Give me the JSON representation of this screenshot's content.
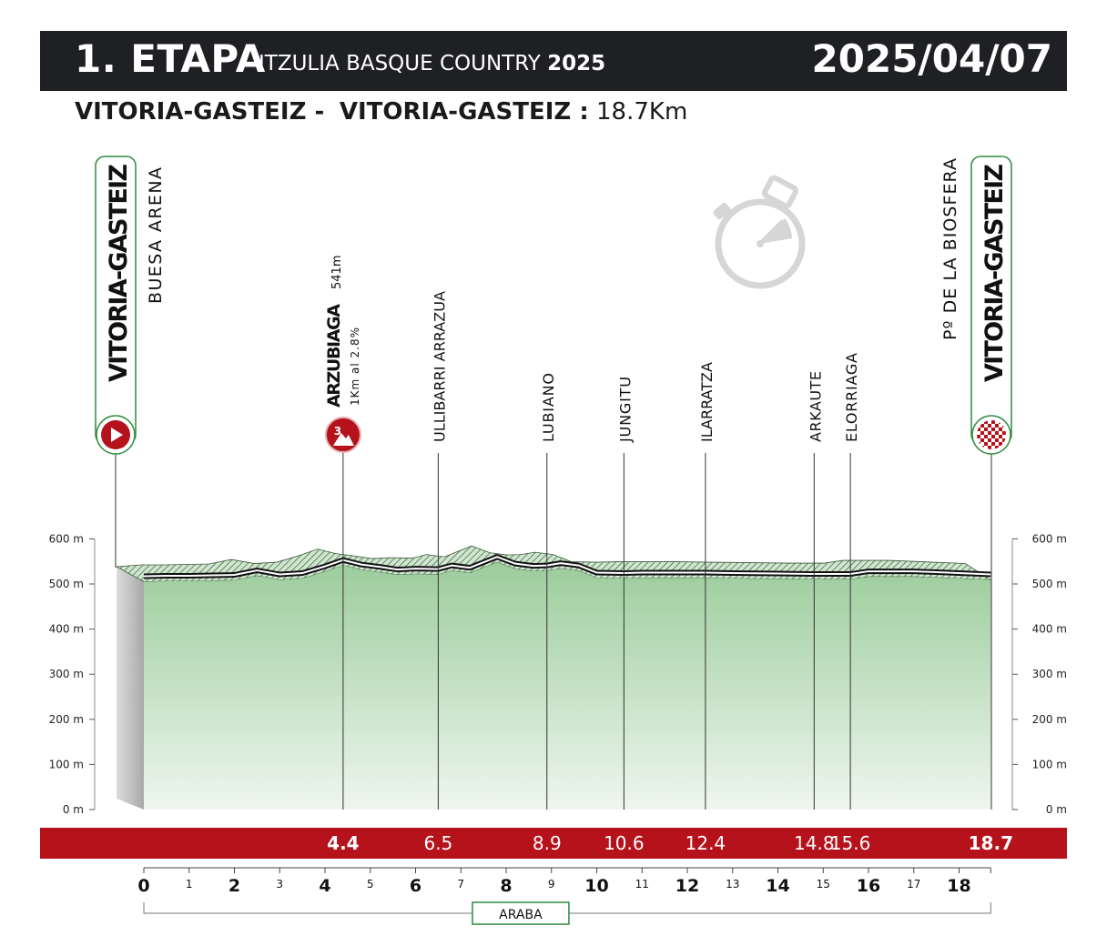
{
  "header": {
    "stage": "1. ETAPA",
    "race_name": "ITZULIA BASQUE COUNTRY",
    "race_year": "2025",
    "date": "2025/04/07"
  },
  "route": {
    "start": "VITORIA-GASTEIZ -",
    "finish": "VITORIA-GASTEIZ :",
    "distance": "18.7Km"
  },
  "colors": {
    "band": "#b5121b",
    "header": "#1f2024",
    "fill_top": "#9ccc9c",
    "fill_bottom": "#eef6ee",
    "climb_marker": "#b5121b",
    "region_box": "#2e8b3e"
  },
  "icons": {
    "start_marker": "play-icon",
    "climb_marker": "mountain-icon",
    "finish_marker": "checkered-flag-icon",
    "time_trial": "stopwatch-icon"
  },
  "start_point": {
    "name": "VITORIA-GASTEIZ",
    "sublabel": "BUESA ARENA",
    "km": 0
  },
  "finish_point": {
    "name": "VITORIA-GASTEIZ",
    "sublabel": "Pº DE LA BIOSFERA",
    "km": 18.7
  },
  "climb": {
    "name": "ARZUBIAGA",
    "altitude": "541m",
    "detail": "1Km al 2.8%",
    "category": "3",
    "km": 4.4
  },
  "waypoints": [
    {
      "name": "ULLIBARRI ARRAZUA",
      "km": 6.5,
      "km_label": "6.5"
    },
    {
      "name": "LUBIANO",
      "km": 8.9,
      "km_label": "8.9"
    },
    {
      "name": "JUNGITU",
      "km": 10.6,
      "km_label": "10.6"
    },
    {
      "name": "ILARRATZA",
      "km": 12.4,
      "km_label": "12.4"
    },
    {
      "name": "ARKAUTE",
      "km": 14.8,
      "km_label": "14.8"
    },
    {
      "name": "ELORRIAGA",
      "km": 15.6,
      "km_label": "15.6"
    }
  ],
  "band_labels": [
    {
      "km": 4.4,
      "label": "4.4",
      "bold": true
    },
    {
      "km": 6.5,
      "label": "6.5",
      "bold": false
    },
    {
      "km": 8.9,
      "label": "8.9",
      "bold": false
    },
    {
      "km": 10.6,
      "label": "10.6",
      "bold": false
    },
    {
      "km": 12.4,
      "label": "12.4",
      "bold": false
    },
    {
      "km": 14.8,
      "label": "14.8",
      "bold": false
    },
    {
      "km": 15.6,
      "label": "15.6",
      "bold": false
    },
    {
      "km": 18.7,
      "label": "18.7",
      "bold": true
    }
  ],
  "region": "ARABA",
  "chart_data": {
    "type": "area",
    "title": "",
    "xlabel": "",
    "ylabel": "",
    "xlim": [
      0,
      18.7
    ],
    "ylim": [
      0,
      600
    ],
    "y_ticks": [
      "0 m",
      "100 m",
      "200 m",
      "300 m",
      "400 m",
      "500 m",
      "600 m"
    ],
    "x_ticks": [
      0,
      1,
      2,
      3,
      4,
      5,
      6,
      7,
      8,
      9,
      10,
      11,
      12,
      13,
      14,
      15,
      16,
      17,
      18
    ],
    "x_major_ticks": [
      0,
      2,
      4,
      6,
      8,
      10,
      12,
      14,
      16,
      18
    ],
    "grid": true,
    "series": [
      {
        "x": [
          0,
          0.5,
          1,
          1.5,
          2,
          2.5,
          3,
          3.5,
          4,
          4.4,
          4.8,
          5.2,
          5.6,
          6,
          6.5,
          6.8,
          7.2,
          7.6,
          7.8,
          8.2,
          8.6,
          8.9,
          9.2,
          9.6,
          10,
          10.6,
          11,
          12,
          12.4,
          13,
          14,
          14.8,
          15.6,
          16,
          17,
          18,
          18.7
        ],
        "y": [
          505,
          506,
          506,
          507,
          508,
          518,
          509,
          512,
          527,
          541,
          531,
          526,
          520,
          522,
          521,
          529,
          524,
          540,
          548,
          533,
          528,
          529,
          534,
          529,
          513,
          512,
          513,
          513,
          513,
          512,
          511,
          510,
          510,
          516,
          516,
          512,
          509
        ]
      }
    ]
  }
}
